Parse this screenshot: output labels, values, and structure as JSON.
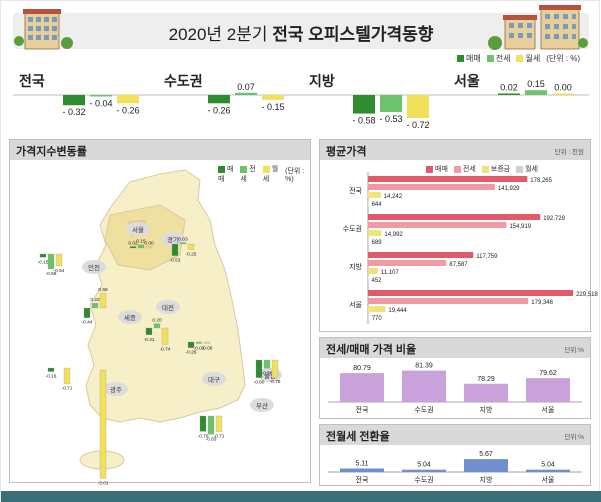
{
  "header": {
    "title_year": "2020년 2분기",
    "title_main": "전국 오피스텔가격동향",
    "legend": [
      "매매",
      "전세",
      "월세",
      "(단위 : %)"
    ]
  },
  "colors": {
    "sale": "#2e8b2e",
    "jeonse": "#6cc36c",
    "wolse": "#f2e05a",
    "avg_sale": "#e05a6a",
    "avg_jeonse": "#f29aa4",
    "avg_deposit": "#f2e27a",
    "avg_wolse": "#cfcfcf",
    "ratio_bar": "#c9a2dc",
    "conv_bar": "#6f8fce"
  },
  "summary": [
    {
      "region": "전국",
      "sale": "- 0.32",
      "jeonse": "- 0.04",
      "wolse": "- 0.26"
    },
    {
      "region": "수도권",
      "sale": "- 0.26",
      "jeonse": "0.07",
      "wolse": "- 0.15"
    },
    {
      "region": "지방",
      "sale": "- 0.58",
      "jeonse": "- 0.53",
      "wolse": "- 0.72"
    },
    {
      "region": "서울",
      "sale": "0.02",
      "jeonse": "0.15",
      "wolse": "0.00"
    }
  ],
  "map_panel": {
    "title": "가격지수변동률",
    "legend": [
      "매매",
      "전세",
      "월세",
      "(단위 : %)"
    ],
    "regions": [
      {
        "name": "서울",
        "values": [
          "0.02",
          "0.15",
          "0.00"
        ]
      },
      {
        "name": "인천",
        "values": [
          "-0.15",
          "-0.68",
          "-0.54"
        ]
      },
      {
        "name": "경기",
        "values": [
          "-0.53",
          "0.03",
          "-0.25"
        ]
      },
      {
        "name": "세종",
        "values": [
          "-0.44",
          "0.22",
          "0.68"
        ]
      },
      {
        "name": "대전",
        "values": [
          "-0.31",
          "0.20",
          "-0.74"
        ]
      },
      {
        "name": "대구",
        "values": [
          "-0.26",
          "-0.03",
          "-0.06"
        ]
      },
      {
        "name": "광주",
        "values": [
          "-0.16",
          "",
          "-0.71"
        ]
      },
      {
        "name": "울산",
        "values": [
          "-0.80",
          "-0.38",
          "-0.78"
        ]
      },
      {
        "name": "부산",
        "values": [
          "-0.70",
          "-0.83",
          "-0.71"
        ]
      },
      {
        "name": "",
        "values": [
          "",
          "",
          "-3.01"
        ]
      }
    ]
  },
  "avg_panel": {
    "title": "평균가격",
    "unit": "단위 : 천원",
    "legend": [
      "매매",
      "전세",
      "보증금",
      "월세"
    ]
  },
  "ratio_panel": {
    "title": "전세/매매 가격 비율",
    "unit": "단위:%"
  },
  "conv_panel": {
    "title": "전월세 전환율",
    "unit": "단위:%"
  },
  "chart_data": [
    {
      "type": "bar",
      "title": "평균가격",
      "categories": [
        "전국",
        "수도권",
        "지방",
        "서울"
      ],
      "series": [
        {
          "name": "매매",
          "values": [
            178265,
            192729,
            117759,
            229518
          ]
        },
        {
          "name": "전세",
          "values": [
            141929,
            154919,
            87587,
            179346
          ]
        },
        {
          "name": "보증금",
          "values": [
            14242,
            14992,
            11107,
            19444
          ]
        },
        {
          "name": "월세",
          "values": [
            644,
            689,
            452,
            770
          ]
        }
      ]
    },
    {
      "type": "bar",
      "title": "전세/매매 가격 비율",
      "categories": [
        "전국",
        "수도권",
        "지방",
        "서울"
      ],
      "values": [
        80.79,
        81.39,
        78.29,
        79.62
      ],
      "ylim": [
        74,
        82
      ]
    },
    {
      "type": "bar",
      "title": "전월세 전환율",
      "categories": [
        "전국",
        "수도권",
        "지방",
        "서울"
      ],
      "values": [
        5.11,
        5.04,
        5.67,
        5.04
      ],
      "ylim": [
        4.9,
        5.8
      ]
    }
  ]
}
